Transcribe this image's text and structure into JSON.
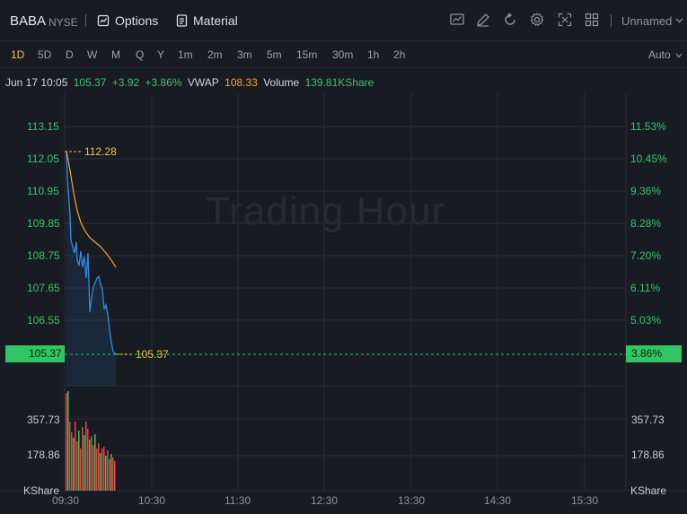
{
  "header": {
    "symbol": "BABA",
    "exchange": "NYSE",
    "options_label": "Options",
    "material_label": "Material",
    "layout_name": "Unnamed",
    "tools": [
      "chart-style-icon",
      "draw-icon",
      "refresh-icon",
      "settings-icon",
      "fullscreen-icon",
      "layout-grid-icon"
    ]
  },
  "periods": {
    "items": [
      "1D",
      "5D",
      "D",
      "W",
      "M",
      "Q",
      "Y",
      "1m",
      "2m",
      "3m",
      "5m",
      "15m",
      "30m",
      "1h",
      "2h"
    ],
    "active": "1D",
    "scale_mode": "Auto"
  },
  "info": {
    "datetime": "Jun 17 10:05",
    "price": "105.37",
    "change": "+3.92",
    "change_pct": "+3.86%",
    "vwap_label": "VWAP",
    "vwap": "108.33",
    "volume_label": "Volume",
    "volume": "139.81KShare"
  },
  "chart": {
    "watermark": "Trading Hour",
    "left_axis": [
      "113.15",
      "112.05",
      "110.95",
      "109.85",
      "108.75",
      "107.65",
      "106.55"
    ],
    "right_axis": [
      "11.53%",
      "10.45%",
      "9.36%",
      "8.28%",
      "7.20%",
      "6.11%",
      "5.03%"
    ],
    "current_price": "105.37",
    "current_pct": "3.86%",
    "high_marker": "112.28",
    "last_marker": "105.37",
    "volume_axis_left": [
      "357.73",
      "178.86"
    ],
    "volume_axis_right": [
      "357.73",
      "178.86"
    ],
    "volume_unit": "KShare",
    "time_axis": [
      "09:30",
      "10:30",
      "11:30",
      "12:30",
      "13:30",
      "14:30",
      "15:30"
    ],
    "colors": {
      "up": "#3ac36a",
      "down": "#e0463f",
      "price_line": "#2f8ae5",
      "vwap_line": "#f2a23a",
      "marker": "#e7c43a"
    }
  }
}
